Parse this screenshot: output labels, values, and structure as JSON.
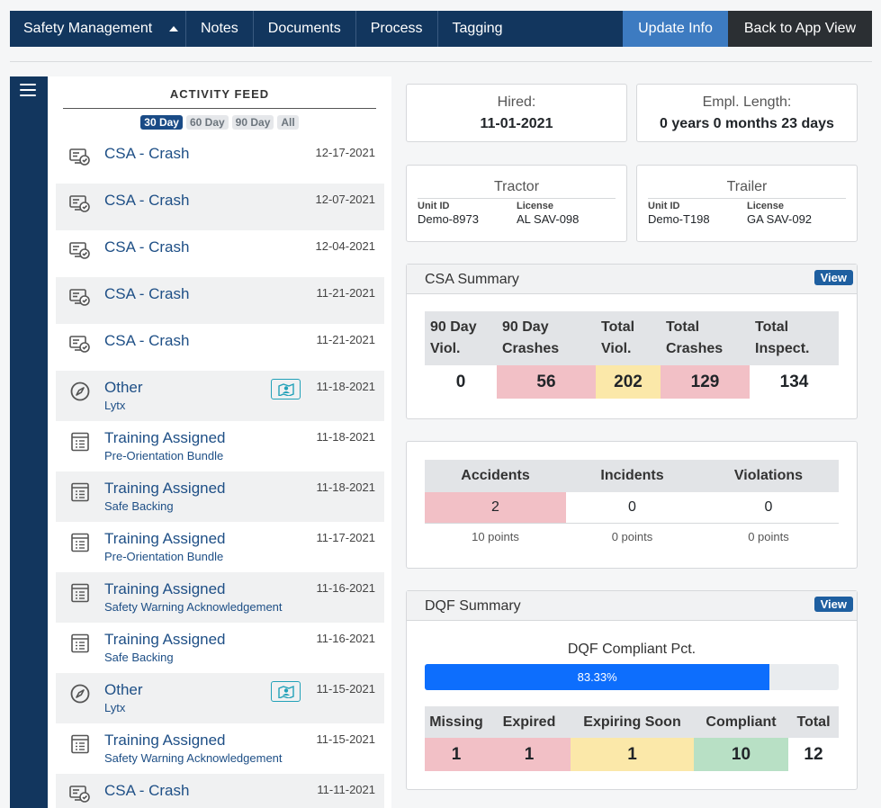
{
  "nav": {
    "tabs": [
      "Safety Management",
      "Notes",
      "Documents",
      "Process",
      "Tagging"
    ],
    "update_label": "Update Info",
    "back_label": "Back to App View"
  },
  "feed": {
    "title": "ACTIVITY FEED",
    "filters": [
      "30 Day",
      "60 Day",
      "90 Day",
      "All"
    ],
    "active_filter": "30 Day",
    "items": [
      {
        "type": "crash",
        "title": "CSA - Crash",
        "date": "12-17-2021"
      },
      {
        "type": "crash",
        "title": "CSA - Crash",
        "date": "12-07-2021"
      },
      {
        "type": "crash",
        "title": "CSA - Crash",
        "date": "12-04-2021"
      },
      {
        "type": "crash",
        "title": "CSA - Crash",
        "date": "11-21-2021"
      },
      {
        "type": "crash",
        "title": "CSA - Crash",
        "date": "11-21-2021"
      },
      {
        "type": "other",
        "title": "Other",
        "subtitle": "Lytx",
        "date": "11-18-2021",
        "badge": true
      },
      {
        "type": "training",
        "title": "Training Assigned",
        "subtitle": "Pre-Orientation Bundle",
        "date": "11-18-2021"
      },
      {
        "type": "training",
        "title": "Training Assigned",
        "subtitle": "Safe Backing",
        "date": "11-18-2021"
      },
      {
        "type": "training",
        "title": "Training Assigned",
        "subtitle": "Pre-Orientation Bundle",
        "date": "11-17-2021"
      },
      {
        "type": "training",
        "title": "Training Assigned",
        "subtitle": "Safety Warning Acknowledgement",
        "date": "11-16-2021"
      },
      {
        "type": "training",
        "title": "Training Assigned",
        "subtitle": "Safe Backing",
        "date": "11-16-2021"
      },
      {
        "type": "other",
        "title": "Other",
        "subtitle": "Lytx",
        "date": "11-15-2021",
        "badge": true
      },
      {
        "type": "training",
        "title": "Training Assigned",
        "subtitle": "Safety Warning Acknowledgement",
        "date": "11-15-2021"
      },
      {
        "type": "crash",
        "title": "CSA - Crash",
        "date": "11-11-2021"
      }
    ]
  },
  "hired": {
    "label": "Hired:",
    "value": "11-01-2021"
  },
  "empl_length": {
    "label": "Empl. Length:",
    "value": "0 years 0 months 23 days"
  },
  "tractor": {
    "title": "Tractor",
    "unit_label": "Unit ID",
    "unit": "Demo-8973",
    "license_label": "License",
    "license": "AL SAV-098"
  },
  "trailer": {
    "title": "Trailer",
    "unit_label": "Unit ID",
    "unit": "Demo-T198",
    "license_label": "License",
    "license": "GA SAV-092"
  },
  "csa": {
    "title": "CSA Summary",
    "view_label": "View",
    "headers": [
      [
        "90 Day",
        "Viol."
      ],
      [
        "90 Day",
        "Crashes"
      ],
      [
        "Total",
        "Viol."
      ],
      [
        "Total",
        "Crashes"
      ],
      [
        "Total",
        "Inspect."
      ]
    ],
    "values": [
      "0",
      "56",
      "202",
      "129",
      "134"
    ]
  },
  "incidents": {
    "headers": [
      "Accidents",
      "Incidents",
      "Violations"
    ],
    "values": [
      "2",
      "0",
      "0"
    ],
    "points": [
      "10 points",
      "0 points",
      "0 points"
    ]
  },
  "dqf": {
    "title": "DQF Summary",
    "view_label": "View",
    "compliant_label": "DQF Compliant Pct.",
    "compliant_pct": 83.33,
    "compliant_text": "83.33%",
    "headers": [
      "Missing",
      "Expired",
      "Expiring Soon",
      "Compliant",
      "Total"
    ],
    "values": [
      "1",
      "1",
      "1",
      "10",
      "12"
    ]
  },
  "colors": {
    "nav": "#12365e",
    "danger_cell": "#f2c0c6",
    "warning_cell": "#fbe8a9",
    "success_cell": "#b8e0c5",
    "progress": "#0d6efd"
  }
}
